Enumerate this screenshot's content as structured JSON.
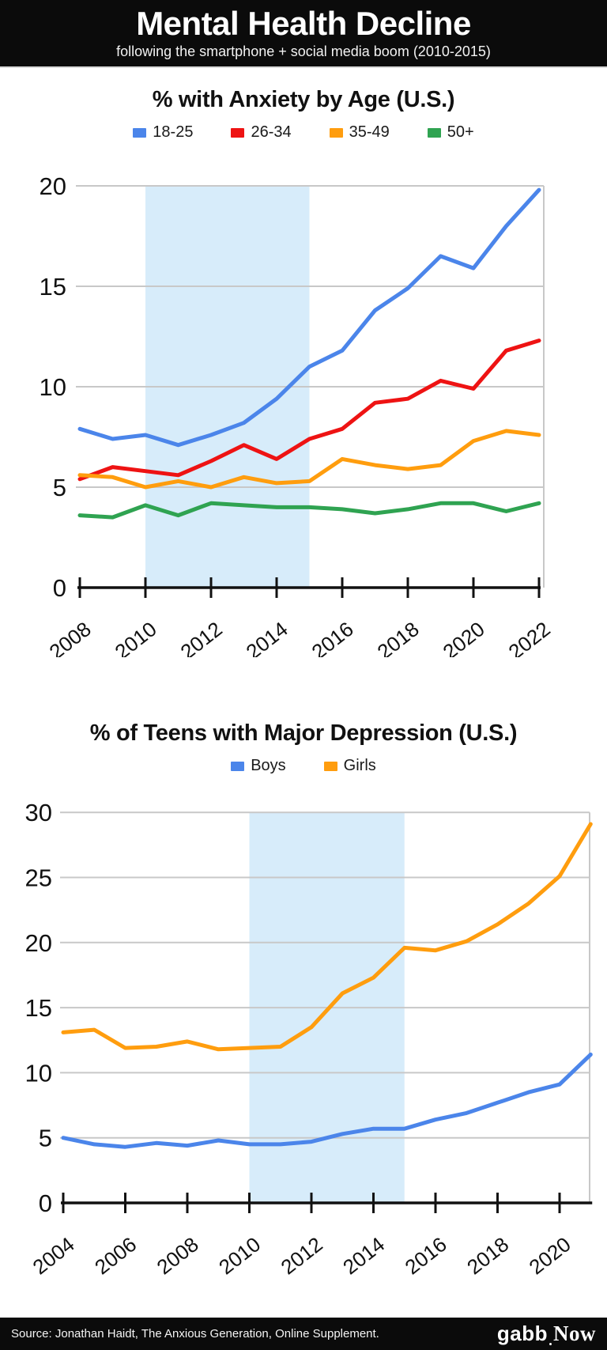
{
  "header": {
    "title": "Mental Health Decline",
    "subtitle": "following the smartphone + social media boom (2010-2015)"
  },
  "footer": {
    "source": "Source: Jonathan Haidt, The Anxious Generation, Online Supplement.",
    "logo_gabb": "gabb",
    "logo_now": "Now"
  },
  "colors": {
    "header_bg": "#0b0b0b",
    "shade": "#d7ecfa",
    "grid": "#c8c8c8",
    "axis": "#111111",
    "blue": "#4b85ea",
    "red": "#ee1313",
    "orange": "#ff9d0e",
    "green": "#2fa351"
  },
  "chart_data": [
    {
      "type": "line",
      "title": "% with Anxiety by Age (U.S.)",
      "x": [
        2008,
        2009,
        2010,
        2011,
        2012,
        2013,
        2014,
        2015,
        2016,
        2017,
        2018,
        2019,
        2020,
        2021,
        2022
      ],
      "x_ticks": [
        2008,
        2010,
        2012,
        2014,
        2016,
        2018,
        2020,
        2022
      ],
      "y_ticks": [
        0,
        5,
        10,
        15,
        20
      ],
      "ylim": [
        0,
        20
      ],
      "grid": true,
      "legend_position": "top",
      "shaded_region": {
        "from": 2010,
        "to": 2015,
        "color": "#d7ecfa"
      },
      "series": [
        {
          "name": "18-25",
          "color": "#4b85ea",
          "values": [
            7.9,
            7.4,
            7.6,
            7.1,
            7.6,
            8.2,
            9.4,
            11.0,
            11.8,
            13.8,
            14.9,
            16.5,
            15.9,
            18.0,
            19.8
          ]
        },
        {
          "name": "26-34",
          "color": "#ee1313",
          "values": [
            5.4,
            6.0,
            5.8,
            5.6,
            6.3,
            7.1,
            6.4,
            7.4,
            7.9,
            9.2,
            9.4,
            10.3,
            9.9,
            11.8,
            12.3
          ]
        },
        {
          "name": "35-49",
          "color": "#ff9d0e",
          "values": [
            5.6,
            5.5,
            5.0,
            5.3,
            5.0,
            5.5,
            5.2,
            5.3,
            6.4,
            6.1,
            5.9,
            6.1,
            7.3,
            7.8,
            7.6
          ]
        },
        {
          "name": "50+",
          "color": "#2fa351",
          "values": [
            3.6,
            3.5,
            4.1,
            3.6,
            4.2,
            4.1,
            4.0,
            4.0,
            3.9,
            3.7,
            3.9,
            4.2,
            4.2,
            3.8,
            4.2
          ]
        }
      ]
    },
    {
      "type": "line",
      "title": "% of Teens with Major Depression (U.S.)",
      "x": [
        2004,
        2005,
        2006,
        2007,
        2008,
        2009,
        2010,
        2011,
        2012,
        2013,
        2014,
        2015,
        2016,
        2017,
        2018,
        2019,
        2020,
        2021
      ],
      "x_ticks": [
        2004,
        2006,
        2008,
        2010,
        2012,
        2014,
        2016,
        2018,
        2020
      ],
      "y_ticks": [
        0,
        5,
        10,
        15,
        20,
        25,
        30
      ],
      "ylim": [
        0,
        30
      ],
      "grid": true,
      "legend_position": "top",
      "shaded_region": {
        "from": 2010,
        "to": 2015,
        "color": "#d7ecfa"
      },
      "series": [
        {
          "name": "Boys",
          "color": "#4b85ea",
          "values": [
            5.0,
            4.5,
            4.3,
            4.6,
            4.4,
            4.8,
            4.5,
            4.5,
            4.7,
            5.3,
            5.7,
            5.7,
            6.4,
            6.9,
            7.7,
            8.5,
            9.1,
            11.4
          ]
        },
        {
          "name": "Girls",
          "color": "#ff9d0e",
          "values": [
            13.1,
            13.3,
            11.9,
            12.0,
            12.4,
            11.8,
            11.9,
            12.0,
            13.5,
            16.1,
            17.3,
            19.6,
            19.4,
            20.1,
            21.4,
            23.0,
            25.1,
            29.1
          ]
        }
      ]
    }
  ]
}
